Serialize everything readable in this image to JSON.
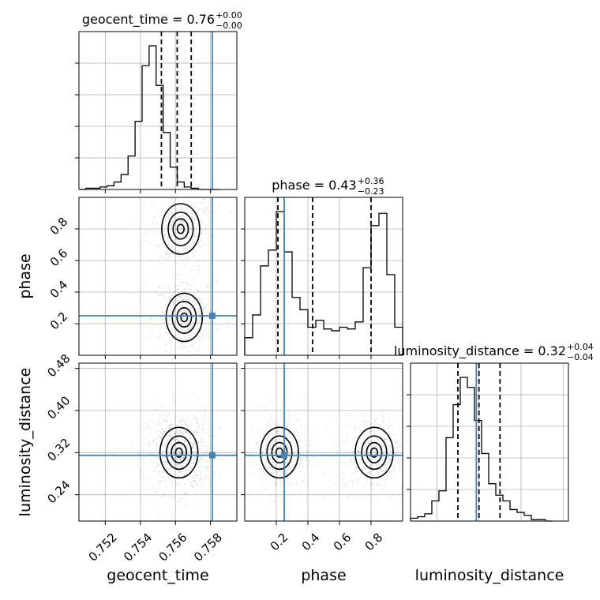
{
  "chart_data": {
    "type": "corner",
    "parameters": [
      "geocent_time",
      "phase",
      "luminosity_distance"
    ],
    "titles": [
      {
        "param": "geocent_time",
        "text": "geocent_time = 0.76",
        "sup": "+0.00",
        "sub": "−0.00"
      },
      {
        "param": "phase",
        "text": "phase = 0.43",
        "sup": "+0.36",
        "sub": "−0.23"
      },
      {
        "param": "luminosity_distance",
        "text": "luminosity_distance = 0.32",
        "sup": "+0.04",
        "sub": "−0.04"
      }
    ],
    "axes": {
      "geocent_time": {
        "range": [
          0.7505,
          0.7595
        ],
        "ticks": [
          0.752,
          0.754,
          0.756,
          0.758
        ],
        "tick_labels": [
          "0.752",
          "0.754",
          "0.756",
          "0.758"
        ]
      },
      "phase": {
        "range": [
          0.0,
          1.0
        ],
        "ticks": [
          0.2,
          0.4,
          0.6,
          0.8
        ],
        "tick_labels": [
          "0.2",
          "0.4",
          "0.6",
          "0.8"
        ]
      },
      "luminosity_distance": {
        "range": [
          0.19,
          0.49
        ],
        "ticks": [
          0.24,
          0.32,
          0.4,
          0.48
        ],
        "tick_labels": [
          "0.24",
          "0.32",
          "0.40",
          "0.48"
        ]
      }
    },
    "axis_labels": {
      "geocent_time": "geocent_time",
      "phase": "phase",
      "luminosity_distance": "luminosity_distance"
    },
    "truths": {
      "geocent_time": 0.7581,
      "phase": 0.25,
      "luminosity_distance": 0.315
    },
    "quantiles": {
      "geocent_time": [
        0.7552,
        0.7561,
        0.7569
      ],
      "phase": [
        0.21,
        0.43,
        0.8
      ],
      "luminosity_distance": [
        0.28,
        0.32,
        0.36
      ]
    },
    "histograms": {
      "geocent_time": {
        "bin_edges_start": 0.7505,
        "bin_width": 0.0004,
        "counts": [
          0,
          1,
          1,
          2,
          3,
          6,
          12,
          27,
          55,
          100,
          116,
          84,
          46,
          18,
          6,
          2,
          1,
          0,
          0,
          0
        ]
      },
      "phase": {
        "bin_edges_start": 0.0,
        "bin_width": 0.05,
        "counts": [
          10,
          23,
          51,
          60,
          82,
          59,
          33,
          26,
          16,
          20,
          15,
          14,
          16,
          15,
          19,
          50,
          74,
          81,
          46,
          16
        ]
      },
      "luminosity_distance": {
        "bin_edges_start": 0.19,
        "bin_width": 0.0135,
        "counts": [
          2,
          3,
          5,
          14,
          21,
          58,
          81,
          100,
          93,
          70,
          47,
          26,
          18,
          14,
          8,
          6,
          4,
          1,
          1,
          0
        ]
      }
    },
    "modes_2d": [
      {
        "x": "geocent_time",
        "y": "phase",
        "points": [
          {
            "x": 0.7563,
            "y": 0.8,
            "w": 1.0
          },
          {
            "x": 0.7565,
            "y": 0.24,
            "w": 0.85
          }
        ]
      },
      {
        "x": "geocent_time",
        "y": "luminosity_distance",
        "points": [
          {
            "x": 0.7562,
            "y": 0.32,
            "w": 1.0
          }
        ]
      },
      {
        "x": "phase",
        "y": "luminosity_distance",
        "points": [
          {
            "x": 0.22,
            "y": 0.32,
            "w": 1.0
          },
          {
            "x": 0.82,
            "y": 0.32,
            "w": 1.0
          }
        ]
      }
    ],
    "grid": true
  }
}
